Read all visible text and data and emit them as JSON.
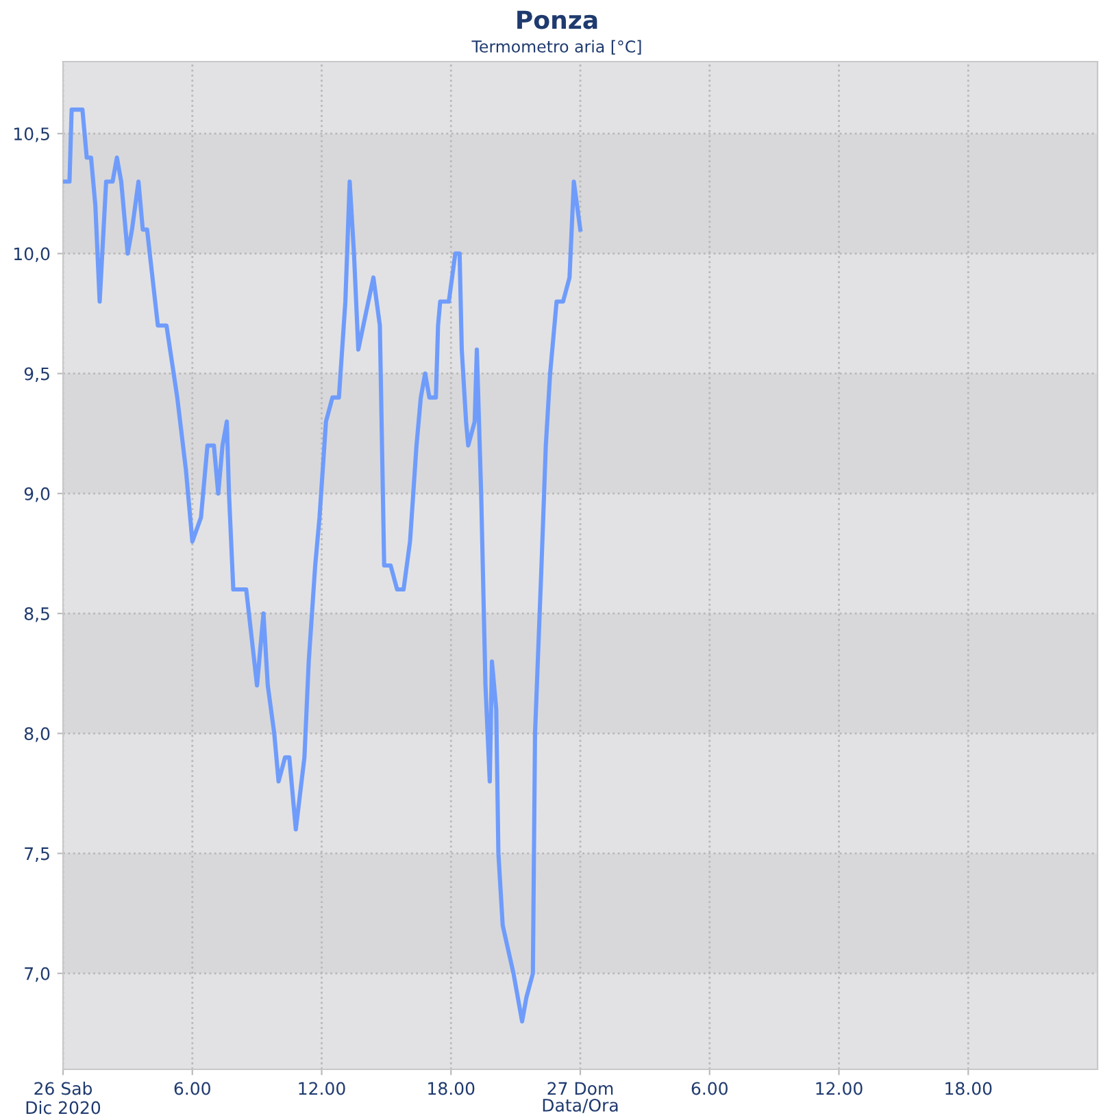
{
  "chart_data": {
    "type": "line",
    "title": "Ponza",
    "subtitle": "Termometro aria [°C]",
    "xlabel": "Data/Ora",
    "series": [
      {
        "color": "#6f9cfb",
        "x": [
          "2020-12-26T00:00",
          "2020-12-26T00:18",
          "2020-12-26T00:24",
          "2020-12-26T00:54",
          "2020-12-26T01:06",
          "2020-12-26T01:18",
          "2020-12-26T01:30",
          "2020-12-26T01:42",
          "2020-12-26T02:00",
          "2020-12-26T02:18",
          "2020-12-26T02:30",
          "2020-12-26T02:42",
          "2020-12-26T03:00",
          "2020-12-26T03:12",
          "2020-12-26T03:30",
          "2020-12-26T03:42",
          "2020-12-26T03:54",
          "2020-12-26T04:24",
          "2020-12-26T04:48",
          "2020-12-26T05:18",
          "2020-12-26T05:42",
          "2020-12-26T06:00",
          "2020-12-26T06:24",
          "2020-12-26T06:42",
          "2020-12-26T07:00",
          "2020-12-26T07:12",
          "2020-12-26T07:24",
          "2020-12-26T07:36",
          "2020-12-26T07:42",
          "2020-12-26T07:54",
          "2020-12-26T08:30",
          "2020-12-26T09:00",
          "2020-12-26T09:18",
          "2020-12-26T09:30",
          "2020-12-26T09:48",
          "2020-12-26T10:00",
          "2020-12-26T10:18",
          "2020-12-26T10:30",
          "2020-12-26T10:48",
          "2020-12-26T11:12",
          "2020-12-26T11:24",
          "2020-12-26T11:42",
          "2020-12-26T11:54",
          "2020-12-26T12:12",
          "2020-12-26T12:30",
          "2020-12-26T12:48",
          "2020-12-26T13:06",
          "2020-12-26T13:18",
          "2020-12-26T13:30",
          "2020-12-26T13:42",
          "2020-12-26T14:24",
          "2020-12-26T14:42",
          "2020-12-26T14:54",
          "2020-12-26T15:12",
          "2020-12-26T15:30",
          "2020-12-26T15:48",
          "2020-12-26T16:06",
          "2020-12-26T16:24",
          "2020-12-26T16:36",
          "2020-12-26T16:48",
          "2020-12-26T17:00",
          "2020-12-26T17:18",
          "2020-12-26T17:24",
          "2020-12-26T17:30",
          "2020-12-26T17:54",
          "2020-12-26T18:12",
          "2020-12-26T18:24",
          "2020-12-26T18:30",
          "2020-12-26T18:42",
          "2020-12-26T18:48",
          "2020-12-26T19:06",
          "2020-12-26T19:12",
          "2020-12-26T19:24",
          "2020-12-26T19:36",
          "2020-12-26T19:48",
          "2020-12-26T19:54",
          "2020-12-26T20:06",
          "2020-12-26T20:12",
          "2020-12-26T20:24",
          "2020-12-26T20:54",
          "2020-12-26T21:18",
          "2020-12-26T21:30",
          "2020-12-26T21:48",
          "2020-12-26T21:54",
          "2020-12-26T22:12",
          "2020-12-26T22:24",
          "2020-12-26T22:36",
          "2020-12-26T22:54",
          "2020-12-26T23:12",
          "2020-12-26T23:30",
          "2020-12-26T23:42",
          "2020-12-27T00:00"
        ],
        "values": [
          10.3,
          10.3,
          10.6,
          10.6,
          10.4,
          10.4,
          10.2,
          9.8,
          10.3,
          10.3,
          10.4,
          10.3,
          10.0,
          10.1,
          10.3,
          10.1,
          10.1,
          9.7,
          9.7,
          9.4,
          9.1,
          8.8,
          8.9,
          9.2,
          9.2,
          9.0,
          9.2,
          9.3,
          9.0,
          8.6,
          8.6,
          8.2,
          8.5,
          8.2,
          8.0,
          7.8,
          7.9,
          7.9,
          7.6,
          7.9,
          8.3,
          8.7,
          8.9,
          9.3,
          9.4,
          9.4,
          9.8,
          10.3,
          10.0,
          9.6,
          9.9,
          9.7,
          8.7,
          8.7,
          8.6,
          8.6,
          8.8,
          9.2,
          9.4,
          9.5,
          9.4,
          9.4,
          9.7,
          9.8,
          9.8,
          10.0,
          10.0,
          9.6,
          9.3,
          9.2,
          9.3,
          9.6,
          9.0,
          8.2,
          7.8,
          8.3,
          8.1,
          7.5,
          7.2,
          7.0,
          6.8,
          6.9,
          7.0,
          8.0,
          8.7,
          9.2,
          9.5,
          9.8,
          9.8,
          9.9,
          10.3,
          10.1
        ]
      }
    ],
    "xlim": [
      "2020-12-26T00:00",
      "2020-12-28T00:00"
    ],
    "xticks": [
      {
        "value": "2020-12-26T00:00",
        "label": "26 Sab\nDic 2020"
      },
      {
        "value": "2020-12-26T06:00",
        "label": "6.00"
      },
      {
        "value": "2020-12-26T12:00",
        "label": "12.00"
      },
      {
        "value": "2020-12-26T18:00",
        "label": "18.00"
      },
      {
        "value": "2020-12-27T00:00",
        "label": "27 Dom"
      },
      {
        "value": "2020-12-27T06:00",
        "label": "6.00"
      },
      {
        "value": "2020-12-27T12:00",
        "label": "12.00"
      },
      {
        "value": "2020-12-27T18:00",
        "label": "18.00"
      }
    ],
    "ylim": [
      6.6,
      10.8
    ],
    "yticks": [
      {
        "value": 7.0,
        "label": "7,0"
      },
      {
        "value": 7.5,
        "label": "7,5"
      },
      {
        "value": 8.0,
        "label": "8,0"
      },
      {
        "value": 8.5,
        "label": "8,5"
      },
      {
        "value": 9.0,
        "label": "9,0"
      },
      {
        "value": 9.5,
        "label": "9,5"
      },
      {
        "value": 10.0,
        "label": "10,0"
      },
      {
        "value": 10.5,
        "label": "10,5"
      }
    ],
    "bands": [
      {
        "axis": "y",
        "from": 7.0,
        "to": 7.5,
        "color": "#d8d8db"
      },
      {
        "axis": "y",
        "from": 8.0,
        "to": 8.5,
        "color": "#d8d8db"
      },
      {
        "axis": "y",
        "from": 9.0,
        "to": 9.5,
        "color": "#d8d8db"
      },
      {
        "axis": "y",
        "from": 10.0,
        "to": 10.5,
        "color": "#d8d8db"
      }
    ],
    "grid": true,
    "legend": false,
    "marker": "none",
    "line_style": "solid"
  }
}
